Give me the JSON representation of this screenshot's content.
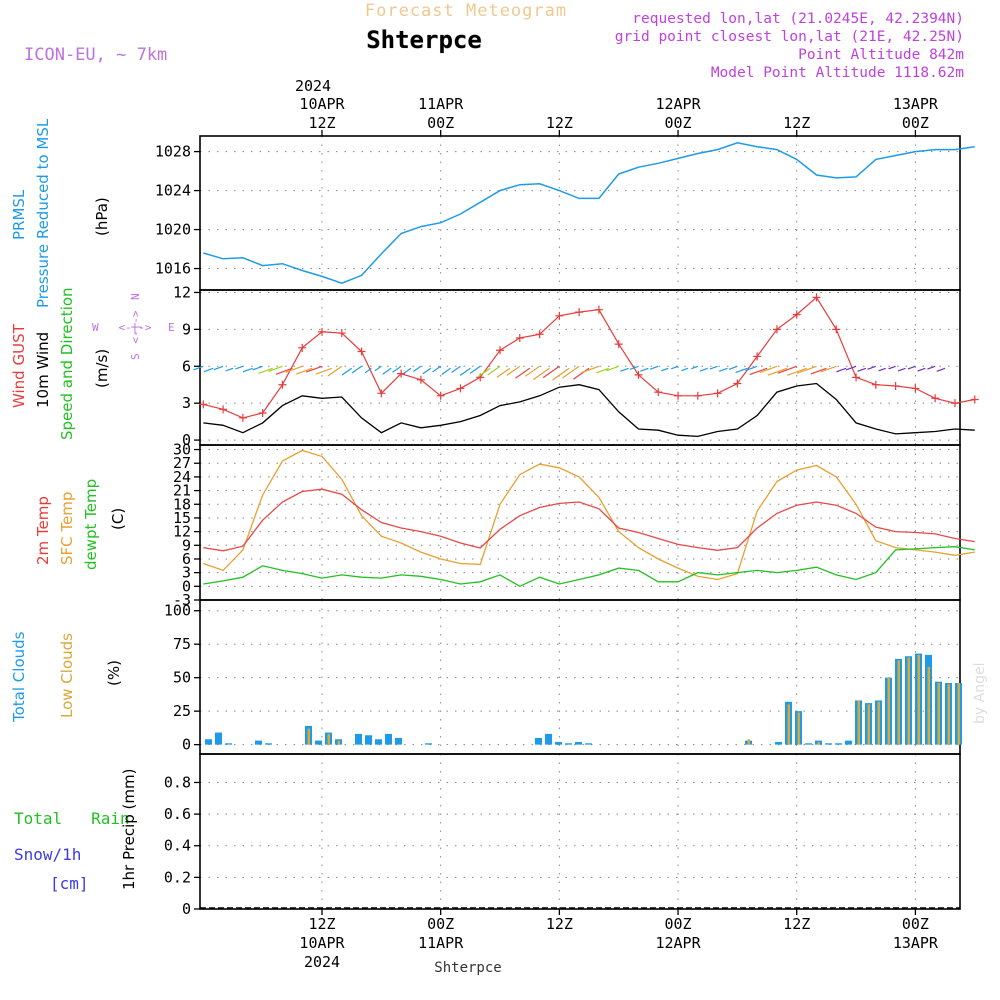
{
  "header": {
    "title": "Shterpce",
    "subtitle": "Forecast Meteogram",
    "model": "ICON-EU, ~ 7km",
    "info": [
      "requested lon,lat (21.0245E, 42.2394N)",
      "grid point closest lon,lat (21E, 42.25N)",
      "Point Altitude 842m",
      "Model Point Altitude 1118.62m"
    ],
    "credit": "by Angel",
    "footer": "Shterpce"
  },
  "colors": {
    "pressure": "#1e9be8",
    "gust": "#e83c3c",
    "wind": "#000000",
    "t2m": "#e84848",
    "sfc": "#e8a030",
    "dew": "#22c022",
    "cloud_total": "#1e9be8",
    "cloud_low": "#d8a838",
    "rain": "#22c022",
    "snow": "#3a3ae8",
    "model": "#c070e0",
    "info": "#c040e0",
    "subtitle": "#f0c890"
  },
  "time_axis": {
    "top_year": "2024",
    "top_ticks": [
      {
        "h": 12,
        "lines": [
          "10APR",
          "12Z"
        ]
      },
      {
        "h": 24,
        "lines": [
          "11APR",
          "00Z"
        ]
      },
      {
        "h": 36,
        "lines": [
          "12Z"
        ]
      },
      {
        "h": 48,
        "lines": [
          "12APR",
          "00Z"
        ]
      },
      {
        "h": 60,
        "lines": [
          "12Z"
        ]
      },
      {
        "h": 72,
        "lines": [
          "13APR",
          "00Z"
        ]
      }
    ],
    "bottom_ticks": [
      {
        "h": 12,
        "lines": [
          "12Z",
          "10APR",
          "2024"
        ]
      },
      {
        "h": 24,
        "lines": [
          "00Z",
          "11APR"
        ]
      },
      {
        "h": 36,
        "lines": [
          "12Z"
        ]
      },
      {
        "h": 48,
        "lines": [
          "00Z",
          "12APR"
        ]
      },
      {
        "h": 60,
        "lines": [
          "12Z"
        ]
      },
      {
        "h": 72,
        "lines": [
          "00Z",
          "13APR"
        ]
      }
    ]
  },
  "panels": {
    "pressure": {
      "labels": [
        "PRMSL",
        "Pressure Reduced to MSL"
      ],
      "unit": "(hPa)",
      "ticks": [
        "1016",
        "1020",
        "1024",
        "1028"
      ]
    },
    "wind": {
      "labels": [
        "Wind GUST",
        "10m Wind",
        "Speed and Direction"
      ],
      "unit": "(m/s)",
      "ticks": [
        "0",
        "3",
        "6",
        "9",
        "12"
      ],
      "compass": {
        "w": "W",
        "e": "E",
        "n": "N",
        "s": "S",
        "arrow": "<-|->"
      }
    },
    "temp": {
      "labels": [
        "2m Temp",
        "SFC Temp",
        "dewpt Temp"
      ],
      "unit": "(C)",
      "ticks": [
        "-3",
        "0",
        "3",
        "6",
        "9",
        "12",
        "15",
        "18",
        "21",
        "24",
        "27",
        "30"
      ]
    },
    "clouds": {
      "labels": [
        "Total Clouds",
        "Low Clouds"
      ],
      "unit": "(%)",
      "ticks": [
        "0",
        "25",
        "50",
        "75",
        "100"
      ]
    },
    "precip": {
      "labels": [
        "Total   Rain",
        "Snow/1h",
        "[cm]"
      ],
      "unit": "1hr Precip (mm)",
      "ticks": [
        "0",
        "0.2",
        "0.4",
        "0.6",
        "0.8"
      ]
    }
  },
  "chart_data": [
    {
      "type": "line",
      "title": "PRMSL Pressure Reduced to MSL",
      "ylabel": "hPa",
      "ylim": [
        1013.8,
        1029.6
      ],
      "x": [
        0,
        2,
        4,
        6,
        8,
        10,
        12,
        14,
        16,
        18,
        20,
        22,
        24,
        26,
        28,
        30,
        32,
        34,
        36,
        38,
        40,
        42,
        44,
        46,
        48,
        50,
        52,
        54,
        56,
        58,
        60,
        62,
        64,
        66,
        68,
        70,
        72,
        74,
        76,
        78
      ],
      "values": [
        1017.6,
        1017.0,
        1017.1,
        1016.3,
        1016.5,
        1015.8,
        1015.2,
        1014.5,
        1015.3,
        1017.5,
        1019.6,
        1020.3,
        1020.7,
        1021.6,
        1022.8,
        1024.0,
        1024.6,
        1024.7,
        1024.0,
        1023.2,
        1023.2,
        1025.7,
        1026.4,
        1026.8,
        1027.3,
        1027.8,
        1028.2,
        1028.9,
        1028.5,
        1028.2,
        1027.2,
        1025.6,
        1025.3,
        1025.4,
        1027.2,
        1027.6,
        1028.0,
        1028.2,
        1028.2,
        1028.5
      ],
      "grid": true
    },
    {
      "type": "line",
      "title": "Wind",
      "ylabel": "m/s",
      "ylim": [
        -0.4,
        12.2
      ],
      "x": [
        0,
        2,
        4,
        6,
        8,
        10,
        12,
        14,
        16,
        18,
        20,
        22,
        24,
        26,
        28,
        30,
        32,
        34,
        36,
        38,
        40,
        42,
        44,
        46,
        48,
        50,
        52,
        54,
        56,
        58,
        60,
        62,
        64,
        66,
        68,
        70,
        72,
        74,
        76,
        78
      ],
      "series": [
        {
          "name": "Wind GUST",
          "values": [
            2.9,
            2.5,
            1.8,
            2.2,
            4.5,
            7.5,
            8.8,
            8.7,
            7.2,
            3.8,
            5.4,
            4.9,
            3.6,
            4.2,
            5.1,
            7.3,
            8.3,
            8.6,
            10.1,
            10.4,
            10.6,
            7.8,
            5.3,
            3.9,
            3.6,
            3.6,
            3.8,
            4.6,
            6.8,
            9.0,
            10.2,
            11.6,
            9.0,
            5.1,
            4.5,
            4.4,
            4.2,
            3.4,
            3.0,
            3.3
          ]
        },
        {
          "name": "10m Wind",
          "values": [
            1.4,
            1.2,
            0.6,
            1.4,
            2.8,
            3.6,
            3.4,
            3.5,
            1.8,
            0.6,
            1.4,
            1.0,
            1.2,
            1.5,
            2.0,
            2.8,
            3.1,
            3.6,
            4.3,
            4.5,
            4.1,
            2.3,
            0.9,
            0.8,
            0.4,
            0.3,
            0.7,
            0.9,
            2.0,
            3.9,
            4.4,
            4.6,
            3.3,
            1.4,
            0.9,
            0.5,
            0.6,
            0.7,
            0.9,
            0.8
          ]
        }
      ],
      "grid": true
    },
    {
      "type": "line",
      "title": "Temperature",
      "ylabel": "C",
      "ylim": [
        -3,
        31
      ],
      "x": [
        0,
        2,
        4,
        6,
        8,
        10,
        12,
        14,
        16,
        18,
        20,
        22,
        24,
        26,
        28,
        30,
        32,
        34,
        36,
        38,
        40,
        42,
        44,
        46,
        48,
        50,
        52,
        54,
        56,
        58,
        60,
        62,
        64,
        66,
        68,
        70,
        72,
        74,
        76,
        78
      ],
      "series": [
        {
          "name": "2m Temp",
          "values": [
            8.5,
            7.8,
            8.8,
            14.5,
            18.5,
            20.8,
            21.3,
            20.2,
            16.8,
            14.0,
            12.8,
            12.0,
            11.0,
            9.5,
            8.4,
            12.5,
            15.5,
            17.3,
            18.2,
            18.5,
            17.0,
            12.8,
            11.8,
            10.5,
            9.2,
            8.5,
            7.9,
            8.5,
            12.8,
            16.0,
            17.8,
            18.5,
            17.8,
            16.0,
            13.0,
            12.0,
            11.8,
            11.5,
            10.5,
            9.8
          ]
        },
        {
          "name": "SFC Temp",
          "values": [
            5.0,
            3.5,
            8.0,
            20.0,
            27.5,
            29.8,
            28.5,
            23.5,
            15.5,
            11.0,
            9.5,
            7.5,
            6.0,
            5.0,
            4.8,
            18.0,
            24.5,
            26.8,
            26.0,
            24.0,
            19.5,
            12.0,
            8.5,
            6.0,
            4.0,
            2.2,
            1.5,
            2.8,
            16.5,
            23.0,
            25.5,
            26.5,
            24.0,
            18.0,
            10.0,
            8.5,
            8.0,
            7.5,
            6.8,
            7.5
          ]
        },
        {
          "name": "dewpt Temp",
          "values": [
            0.5,
            1.2,
            2.0,
            4.5,
            3.5,
            2.8,
            1.8,
            2.5,
            2.0,
            1.8,
            2.5,
            2.2,
            1.5,
            0.5,
            1.0,
            2.5,
            0.0,
            2.0,
            0.5,
            1.5,
            2.5,
            4.0,
            3.5,
            1.0,
            1.0,
            3.0,
            2.5,
            3.0,
            3.5,
            3.0,
            3.5,
            4.2,
            2.5,
            1.5,
            3.0,
            8.0,
            8.2,
            8.5,
            8.7,
            8.0
          ]
        }
      ],
      "grid": true
    },
    {
      "type": "bar",
      "title": "Clouds",
      "ylabel": "%",
      "ylim": [
        -7,
        108
      ],
      "x": [
        0,
        1,
        2,
        3,
        4,
        5,
        6,
        7,
        8,
        9,
        10,
        11,
        12,
        13,
        14,
        15,
        16,
        17,
        18,
        19,
        20,
        21,
        22,
        23,
        24,
        25,
        26,
        27,
        28,
        29,
        30,
        31,
        32,
        33,
        34,
        35,
        36,
        37,
        38,
        39,
        40,
        41,
        42,
        43,
        44,
        45,
        46,
        47,
        48,
        49,
        50,
        51,
        52,
        53,
        54,
        55,
        56,
        57,
        58,
        59,
        60,
        61,
        62,
        63,
        64,
        65,
        66,
        67,
        68,
        69,
        70,
        71,
        72,
        73,
        74,
        75
      ],
      "series": [
        {
          "name": "Total Clouds",
          "values": [
            4,
            9,
            1,
            0,
            0,
            3,
            1,
            0,
            0,
            0,
            14,
            3,
            9,
            4,
            0,
            8,
            7,
            4,
            8,
            5,
            0,
            0,
            1,
            0,
            0,
            0,
            0,
            0,
            0,
            0,
            0,
            0,
            0,
            5,
            8,
            2,
            1,
            2,
            1,
            0,
            0,
            0,
            0,
            0,
            0,
            0,
            0,
            0,
            0,
            0,
            0,
            0,
            0,
            0,
            3,
            0,
            0,
            2,
            32,
            25,
            1,
            3,
            1,
            1,
            3,
            33,
            31,
            33,
            50,
            64,
            66,
            68,
            67,
            47,
            46,
            46
          ]
        },
        {
          "name": "Low Clouds",
          "values": [
            0,
            0,
            0,
            0,
            0,
            0,
            0,
            0,
            0,
            0,
            12,
            0,
            8,
            3,
            0,
            0,
            0,
            0,
            0,
            0,
            0,
            0,
            0,
            0,
            0,
            0,
            0,
            0,
            0,
            0,
            0,
            0,
            0,
            0,
            0,
            0,
            0,
            0,
            0,
            0,
            0,
            0,
            0,
            0,
            0,
            0,
            0,
            0,
            0,
            0,
            0,
            0,
            0,
            0,
            4,
            0,
            0,
            0,
            30,
            24,
            0,
            2,
            0,
            0,
            0,
            33,
            30,
            32,
            50,
            63,
            65,
            67,
            58,
            46,
            45,
            46
          ]
        }
      ],
      "grid": true
    },
    {
      "type": "bar",
      "title": "Precipitation",
      "ylabel": "1hr Precip (mm)",
      "ylim": [
        0,
        0.98
      ],
      "x": [],
      "series": [
        {
          "name": "Total Rain",
          "values": []
        },
        {
          "name": "Snow/1h",
          "values": []
        }
      ],
      "grid": true
    }
  ]
}
